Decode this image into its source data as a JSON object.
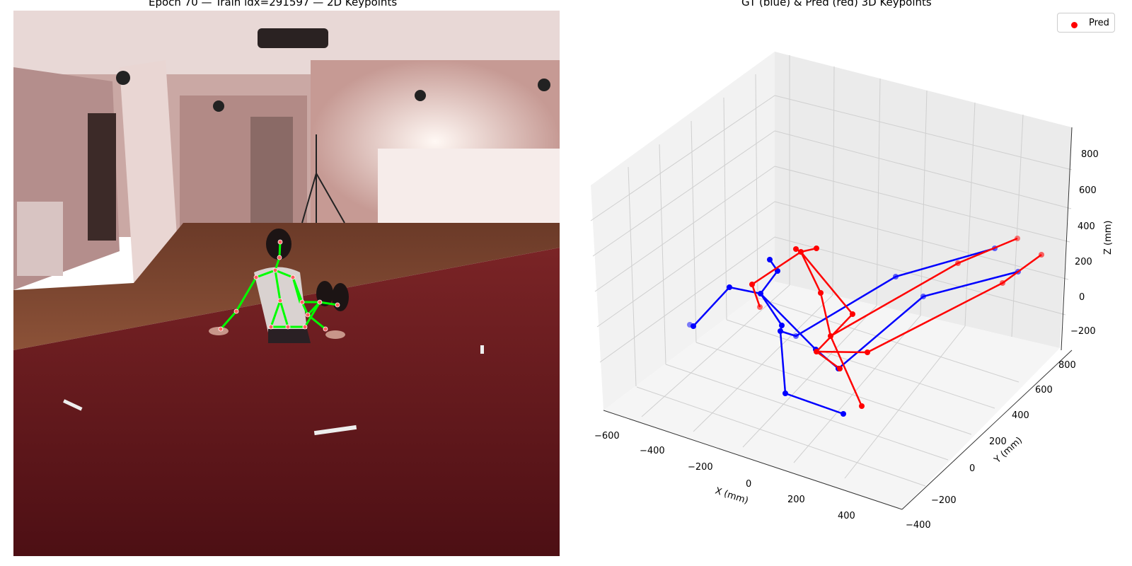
{
  "left_panel": {
    "title": "Epoch 70 — Train idx=291597 — 2D Keypoints",
    "skeleton_color": "#00ff00",
    "joint_color": "#ff3b3b"
  },
  "right_panel": {
    "title": "GT (blue) & Pred (red) 3D Keypoints",
    "legend": {
      "label": "Pred",
      "color": "#ff0000"
    },
    "x_axis": {
      "label": "X (mm)",
      "ticks": [
        "−600",
        "−400",
        "−200",
        "0",
        "200",
        "400"
      ]
    },
    "y_axis": {
      "label": "Y (mm)",
      "ticks": [
        "−400",
        "−200",
        "0",
        "200",
        "400",
        "600",
        "800"
      ]
    },
    "z_axis": {
      "label": "Z (mm)",
      "ticks": [
        "−200",
        "0",
        "200",
        "400",
        "600",
        "800"
      ]
    },
    "series_colors": {
      "gt": "#0000ff",
      "pred": "#ff0000"
    }
  }
}
